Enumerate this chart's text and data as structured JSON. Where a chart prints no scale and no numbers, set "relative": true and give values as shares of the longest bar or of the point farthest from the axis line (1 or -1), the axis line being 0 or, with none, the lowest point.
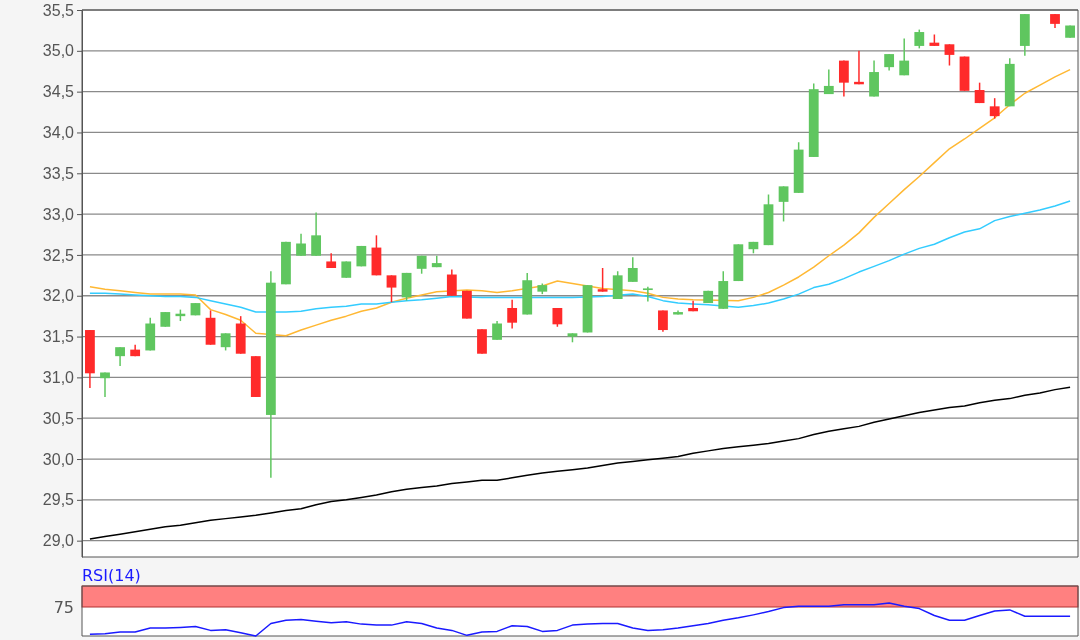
{
  "chart_data": [
    {
      "type": "candlestick",
      "categories": [
        null,
        null,
        null,
        null,
        null,
        null,
        null,
        null,
        null,
        null,
        null,
        null,
        null,
        null,
        null,
        null,
        null,
        null,
        null,
        null,
        null,
        null,
        null,
        null,
        null,
        null,
        null,
        null,
        null,
        null,
        null,
        null,
        null,
        null,
        null,
        null,
        null,
        null,
        null,
        null,
        null,
        null,
        null,
        null,
        null,
        null,
        null,
        null,
        null,
        null,
        null,
        null,
        null,
        null,
        null,
        null,
        null,
        null,
        null,
        null,
        null,
        null,
        null,
        null,
        null,
        null
      ],
      "ohlc": [
        [
          31.58,
          31.58,
          30.87,
          31.05
        ],
        [
          30.99,
          31.06,
          30.76,
          31.06
        ],
        [
          31.26,
          31.37,
          31.14,
          31.37
        ],
        [
          31.34,
          31.4,
          31.26,
          31.26
        ],
        [
          31.33,
          31.73,
          31.33,
          31.66
        ],
        [
          31.62,
          31.8,
          31.62,
          31.8
        ],
        [
          31.75,
          31.83,
          31.69,
          31.78
        ],
        [
          31.76,
          31.91,
          31.76,
          31.91
        ],
        [
          31.73,
          31.82,
          31.4,
          31.4
        ],
        [
          31.37,
          31.54,
          31.33,
          31.54
        ],
        [
          31.66,
          31.75,
          31.29,
          31.29
        ],
        [
          31.26,
          31.26,
          30.76,
          30.76
        ],
        [
          30.54,
          32.3,
          29.77,
          32.16
        ],
        [
          32.14,
          32.66,
          32.14,
          32.66
        ],
        [
          32.49,
          32.76,
          32.49,
          32.64
        ],
        [
          32.49,
          33.02,
          32.49,
          32.74
        ],
        [
          32.42,
          32.52,
          32.34,
          32.34
        ],
        [
          32.22,
          32.42,
          32.22,
          32.42
        ],
        [
          32.36,
          32.61,
          32.36,
          32.61
        ],
        [
          32.59,
          32.74,
          32.25,
          32.25
        ],
        [
          32.25,
          32.25,
          31.92,
          32.1
        ],
        [
          31.98,
          32.28,
          31.94,
          32.28
        ],
        [
          32.33,
          32.49,
          32.27,
          32.49
        ],
        [
          32.35,
          32.49,
          32.35,
          32.4
        ],
        [
          32.26,
          32.32,
          32.0,
          32.0
        ],
        [
          32.06,
          32.06,
          31.72,
          31.72
        ],
        [
          31.59,
          31.59,
          31.29,
          31.29
        ],
        [
          31.46,
          31.69,
          31.46,
          31.66
        ],
        [
          31.85,
          31.95,
          31.6,
          31.67
        ],
        [
          31.77,
          32.28,
          31.77,
          32.19
        ],
        [
          32.05,
          32.15,
          32.02,
          32.13
        ],
        [
          31.85,
          31.85,
          31.62,
          31.65
        ],
        [
          31.5,
          31.54,
          31.43,
          31.54
        ],
        [
          31.55,
          32.13,
          31.55,
          32.13
        ],
        [
          32.08,
          32.34,
          32.05,
          32.05
        ],
        [
          31.96,
          32.3,
          31.96,
          32.25
        ],
        [
          32.17,
          32.47,
          32.17,
          32.34
        ],
        [
          32.07,
          32.11,
          31.93,
          32.09
        ],
        [
          31.82,
          31.82,
          31.56,
          31.58
        ],
        [
          31.77,
          31.82,
          31.77,
          31.8
        ],
        [
          31.85,
          31.94,
          31.81,
          31.81
        ],
        [
          31.91,
          32.06,
          31.91,
          32.06
        ],
        [
          31.84,
          32.3,
          31.84,
          32.18
        ],
        [
          32.18,
          32.63,
          32.18,
          32.63
        ],
        [
          32.57,
          32.66,
          32.52,
          32.66
        ],
        [
          32.62,
          33.24,
          32.62,
          33.12
        ],
        [
          33.15,
          33.34,
          32.91,
          33.34
        ],
        [
          33.26,
          33.88,
          33.26,
          33.79
        ],
        [
          33.7,
          34.6,
          33.7,
          34.53
        ],
        [
          34.47,
          34.77,
          34.47,
          34.57
        ],
        [
          34.88,
          34.88,
          34.44,
          34.61
        ],
        [
          34.62,
          35.0,
          34.59,
          34.59
        ],
        [
          34.44,
          34.88,
          34.44,
          34.74
        ],
        [
          34.8,
          34.96,
          34.76,
          34.96
        ],
        [
          34.7,
          35.15,
          34.7,
          34.88
        ],
        [
          35.06,
          35.26,
          35.03,
          35.23
        ],
        [
          35.1,
          35.2,
          35.06,
          35.06
        ],
        [
          35.08,
          35.08,
          34.82,
          34.95
        ],
        [
          34.93,
          34.93,
          34.51,
          34.51
        ],
        [
          34.52,
          34.61,
          34.36,
          34.36
        ],
        [
          34.32,
          34.42,
          34.17,
          34.2
        ],
        [
          34.32,
          34.91,
          34.32,
          34.84
        ],
        [
          35.06,
          35.45,
          34.94,
          35.45
        ],
        null,
        [
          35.45,
          35.45,
          35.28,
          35.33
        ],
        [
          35.16,
          35.31,
          35.16,
          35.31
        ]
      ],
      "series": [
        {
          "type": "line",
          "color": "#ffb833",
          "values": [
            32.11,
            32.08,
            32.06,
            32.04,
            32.02,
            32.02,
            32.02,
            32.01,
            31.83,
            31.77,
            31.7,
            31.54,
            null,
            31.51,
            31.58,
            31.64,
            31.7,
            31.75,
            31.81,
            31.85,
            31.92,
            31.97,
            32.01,
            32.05,
            null,
            32.07,
            32.06,
            32.04,
            32.06,
            null,
            32.12,
            32.18,
            32.15,
            null,
            32.09,
            null,
            32.06,
            32.03,
            31.98,
            31.96,
            31.95,
            null,
            null,
            31.94,
            31.98,
            32.04,
            32.13,
            32.23,
            32.35,
            32.49,
            32.62,
            32.77,
            32.96,
            33.13,
            33.3,
            33.46,
            33.63,
            33.8,
            33.92,
            34.05,
            34.18,
            34.34,
            34.48,
            34.58,
            34.68,
            34.77
          ]
        },
        {
          "type": "line",
          "color": "#33ccff",
          "values": [
            32.03,
            32.03,
            32.02,
            32.01,
            32.0,
            31.99,
            31.99,
            31.98,
            31.94,
            31.9,
            31.86,
            31.8,
            null,
            31.8,
            31.81,
            31.84,
            31.86,
            31.87,
            31.9,
            31.9,
            31.92,
            31.94,
            31.95,
            31.97,
            31.99,
            null,
            31.98,
            31.98,
            31.98,
            null,
            31.98,
            31.98,
            31.98,
            null,
            31.99,
            null,
            32.02,
            31.99,
            31.94,
            31.91,
            31.9,
            31.89,
            null,
            31.86,
            31.88,
            31.91,
            31.96,
            32.02,
            32.1,
            32.14,
            32.21,
            32.29,
            32.36,
            32.43,
            32.51,
            32.58,
            32.63,
            32.71,
            32.78,
            32.82,
            32.92,
            32.97,
            33.01,
            33.05,
            33.1,
            33.16
          ]
        },
        {
          "type": "line",
          "color": "#000000",
          "values": [
            29.02,
            29.05,
            29.08,
            29.11,
            29.14,
            29.17,
            29.19,
            29.22,
            29.25,
            29.27,
            29.29,
            29.31,
            29.34,
            29.37,
            29.39,
            29.44,
            29.48,
            29.5,
            29.53,
            29.56,
            29.6,
            29.63,
            29.65,
            29.67,
            29.7,
            29.72,
            29.74,
            29.74,
            29.77,
            29.8,
            29.83,
            29.85,
            29.87,
            29.89,
            29.92,
            29.95,
            29.97,
            29.99,
            30.01,
            30.03,
            30.07,
            30.1,
            30.13,
            30.15,
            30.17,
            30.19,
            30.22,
            30.25,
            30.3,
            30.34,
            30.37,
            30.4,
            30.45,
            30.49,
            30.53,
            30.57,
            30.6,
            30.63,
            30.65,
            30.69,
            30.72,
            30.74,
            30.78,
            30.81,
            30.85,
            30.88
          ]
        }
      ],
      "ylim": [
        28.8,
        35.5
      ],
      "yticks": [
        {
          "value": 29,
          "label": "29,0"
        },
        {
          "value": 29.5,
          "label": "29,5"
        },
        {
          "value": 30,
          "label": "30,0"
        },
        {
          "value": 30.5,
          "label": "30,5"
        },
        {
          "value": 31,
          "label": "31,0"
        },
        {
          "value": 31.5,
          "label": "31,5"
        },
        {
          "value": 32,
          "label": "32,0"
        },
        {
          "value": 32.5,
          "label": "32,5"
        },
        {
          "value": 33,
          "label": "33,0"
        },
        {
          "value": 33.5,
          "label": "33,5"
        },
        {
          "value": 34,
          "label": "34,0"
        },
        {
          "value": 34.5,
          "label": "34,5"
        },
        {
          "value": 35,
          "label": "35,0"
        },
        {
          "value": 35.5,
          "label": "35,5"
        }
      ],
      "grid": "y",
      "tick_labels": "y"
    },
    {
      "type": "line",
      "relative": true,
      "title": "RSI(14)",
      "annotations": [
        "75"
      ],
      "tick_labels": false,
      "categories": [
        null,
        null,
        null,
        null,
        null,
        null,
        null,
        null,
        null,
        null,
        null,
        null,
        null,
        null,
        null,
        null,
        null,
        null,
        null,
        null,
        null,
        null,
        null,
        null,
        null,
        null,
        null,
        null,
        null,
        null,
        null,
        null,
        null,
        null,
        null,
        null,
        null,
        null,
        null,
        null,
        null,
        null,
        null,
        null,
        null,
        null,
        null,
        null,
        null,
        null,
        null,
        null,
        null,
        null,
        null,
        null,
        null,
        null,
        null,
        null,
        null,
        null,
        null,
        null,
        null,
        null
      ],
      "series": [
        {
          "color": "#1a1aff",
          "values": [
            0.05,
            0.07,
            0.12,
            0.12,
            0.24,
            0.24,
            0.26,
            0.29,
            0.17,
            0.19,
            0.1,
            0,
            0.38,
            0.48,
            0.5,
            0.45,
            0.4,
            0.43,
            0.36,
            0.33,
            0.33,
            0.43,
            0.38,
            0.24,
            0.17,
            0.02,
            0.12,
            0.14,
            0.31,
            0.29,
            0.14,
            0.17,
            0.33,
            0.36,
            0.38,
            0.38,
            0.24,
            0.17,
            0.19,
            0.24,
            0.31,
            0.38,
            0.48,
            0.55,
            0.64,
            0.74,
            0.86,
            0.9,
            0.9,
            0.9,
            0.95,
            0.95,
            0.95,
            1,
            0.9,
            0.83,
            0.62,
            0.48,
            0.48,
            0.62,
            0.76,
            0.79,
            0.6,
            0.6,
            0.6,
            0.6
          ]
        }
      ]
    }
  ]
}
